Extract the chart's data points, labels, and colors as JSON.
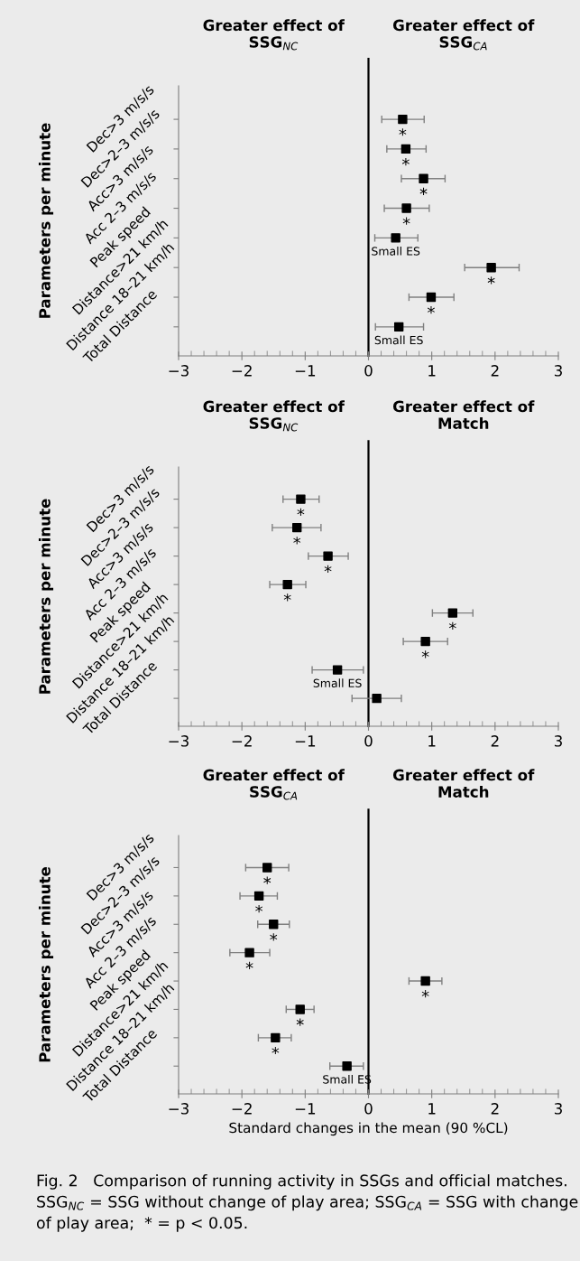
{
  "chart_data": [
    {
      "type": "scatter",
      "orientation": "horizontal",
      "ylabel": "Parameters per minute",
      "annotations": [
        "Greater effect of\nSSG$_{NC}$",
        "Greater effect of\nSSG$_{CA}$"
      ],
      "categories": [
        "Dec>3 m/s/s",
        "Dec>2–3 m/s/s",
        "Acc>3 m/s/s",
        "Acc 2–3 m/s/s",
        "Peak speed",
        "Distance>21 km/h",
        "Distance 18–21 km/h",
        "Total Distance"
      ],
      "values": [
        0.54,
        0.59,
        0.87,
        0.6,
        0.43,
        1.94,
        0.99,
        0.48
      ],
      "errors": [
        [
          0.21,
          0.88
        ],
        [
          0.29,
          0.91
        ],
        [
          0.52,
          1.21
        ],
        [
          0.25,
          0.96
        ],
        [
          0.1,
          0.78
        ],
        [
          1.52,
          2.38
        ],
        [
          0.64,
          1.35
        ],
        [
          0.11,
          0.87
        ]
      ],
      "value_labels": [
        "*",
        "*",
        "*",
        "*",
        "Small ES",
        "*",
        "*",
        "Small ES"
      ],
      "color": "#000000",
      "marker": "square",
      "grid": false,
      "ref_lines": [
        {
          "axis": "x",
          "value": 0,
          "color": "#000000"
        }
      ],
      "xlim": [
        -3,
        3
      ],
      "xticks": [
        {
          "value": -3,
          "label": "−3"
        },
        {
          "value": -2.8,
          "label": null
        },
        {
          "value": -2.6,
          "label": null
        },
        {
          "value": -2.4,
          "label": null
        },
        {
          "value": -2.2,
          "label": null
        },
        {
          "value": -2,
          "label": "−2"
        },
        {
          "value": -1.8,
          "label": null
        },
        {
          "value": -1.6,
          "label": null
        },
        {
          "value": -1.4,
          "label": null
        },
        {
          "value": -1.2,
          "label": null
        },
        {
          "value": -1,
          "label": "−1"
        },
        {
          "value": -0.8,
          "label": null
        },
        {
          "value": -0.6,
          "label": null
        },
        {
          "value": -0.4,
          "label": null
        },
        {
          "value": -0.2,
          "label": null
        },
        0,
        {
          "value": 0.2,
          "label": null
        },
        {
          "value": 0.4,
          "label": null
        },
        {
          "value": 0.6,
          "label": null
        },
        {
          "value": 0.8,
          "label": null
        },
        1,
        {
          "value": 1.2,
          "label": null
        },
        {
          "value": 1.4,
          "label": null
        },
        {
          "value": 1.6,
          "label": null
        },
        {
          "value": 1.8,
          "label": null
        },
        2,
        {
          "value": 2.2,
          "label": null
        },
        {
          "value": 2.4,
          "label": null
        },
        {
          "value": 2.6,
          "label": null
        },
        {
          "value": 2.8,
          "label": null
        },
        3
      ]
    },
    {
      "type": "scatter",
      "orientation": "horizontal",
      "ylabel": "Parameters per minute",
      "annotations": [
        "Greater effect of\nSSG$_{NC}$",
        "Greater effect of\nMatch"
      ],
      "categories": [
        "Dec>3 m/s/s",
        "Dec>2–3 m/s/s",
        "Acc>3 m/s/s",
        "Acc 2–3 m/s/s",
        "Peak speed",
        "Distance>21 km/h",
        "Distance 18–21 km/h",
        "Total Distance"
      ],
      "values": [
        -1.07,
        -1.13,
        -0.64,
        -1.28,
        1.33,
        0.9,
        -0.49,
        0.13
      ],
      "errors": [
        [
          -1.35,
          -0.78
        ],
        [
          -1.52,
          -0.75
        ],
        [
          -0.95,
          -0.32
        ],
        [
          -1.56,
          -0.99
        ],
        [
          1.01,
          1.65
        ],
        [
          0.55,
          1.25
        ],
        [
          -0.89,
          -0.08
        ],
        [
          -0.26,
          0.52
        ]
      ],
      "value_labels": [
        "*",
        "*",
        "*",
        "*",
        "*",
        "*",
        "Small ES",
        null
      ],
      "color": "#000000",
      "marker": "square",
      "grid": false,
      "ref_lines": [
        {
          "axis": "x",
          "value": 0,
          "color": "#000000"
        }
      ],
      "xlim": [
        -3,
        3
      ],
      "xticks": [
        {
          "value": -3,
          "label": "−3"
        },
        {
          "value": -2.8,
          "label": null
        },
        {
          "value": -2.6,
          "label": null
        },
        {
          "value": -2.4,
          "label": null
        },
        {
          "value": -2.2,
          "label": null
        },
        {
          "value": -2,
          "label": "−2"
        },
        {
          "value": -1.8,
          "label": null
        },
        {
          "value": -1.6,
          "label": null
        },
        {
          "value": -1.4,
          "label": null
        },
        {
          "value": -1.2,
          "label": null
        },
        {
          "value": -1,
          "label": "−1"
        },
        {
          "value": -0.8,
          "label": null
        },
        {
          "value": -0.6,
          "label": null
        },
        {
          "value": -0.4,
          "label": null
        },
        {
          "value": -0.2,
          "label": null
        },
        0,
        {
          "value": 0.2,
          "label": null
        },
        {
          "value": 0.4,
          "label": null
        },
        {
          "value": 0.6,
          "label": null
        },
        {
          "value": 0.8,
          "label": null
        },
        1,
        {
          "value": 1.2,
          "label": null
        },
        {
          "value": 1.4,
          "label": null
        },
        {
          "value": 1.6,
          "label": null
        },
        {
          "value": 1.8,
          "label": null
        },
        2,
        {
          "value": 2.2,
          "label": null
        },
        {
          "value": 2.4,
          "label": null
        },
        {
          "value": 2.6,
          "label": null
        },
        {
          "value": 2.8,
          "label": null
        },
        3
      ]
    },
    {
      "type": "scatter",
      "orientation": "horizontal",
      "ylabel": "Parameters per minute",
      "xlabel": "Standard changes in the mean (90 %CL)",
      "annotations": [
        "Greater effect of\nSSG$_{CA}$",
        "Greater effect of\nMatch",
        "Fig. 2   Comparison of running activity in SSGs and official matches. SSG$_{NC}$ = SSG without change of play area; SSG$_{CA}$ = SSG with change of play area;  * = p < 0.05."
      ],
      "categories": [
        "Dec>3 m/s/s",
        "Dec>2–3 m/s/s",
        "Acc>3 m/s/s",
        "Acc 2–3 m/s/s",
        "Peak speed",
        "Distance>21 km/h",
        "Distance 18–21 km/h",
        "Total Distance"
      ],
      "values": [
        -1.6,
        -1.73,
        -1.5,
        -1.88,
        0.9,
        -1.08,
        -1.47,
        -0.34
      ],
      "errors": [
        [
          -1.94,
          -1.26
        ],
        [
          -2.03,
          -1.44
        ],
        [
          -1.75,
          -1.25
        ],
        [
          -2.19,
          -1.56
        ],
        [
          0.64,
          1.16
        ],
        [
          -1.3,
          -0.86
        ],
        [
          -1.74,
          -1.22
        ],
        [
          -0.61,
          -0.08
        ]
      ],
      "value_labels": [
        "*",
        "*",
        "*",
        "*",
        "*",
        "*",
        "*",
        "Small ES"
      ],
      "color": "#000000",
      "marker": "square",
      "grid": false,
      "ref_lines": [
        {
          "axis": "x",
          "value": 0,
          "color": "#000000"
        }
      ],
      "xlim": [
        -3,
        3
      ],
      "xticks": [
        {
          "value": -3,
          "label": "−3"
        },
        {
          "value": -2.8,
          "label": null
        },
        {
          "value": -2.6,
          "label": null
        },
        {
          "value": -2.4,
          "label": null
        },
        {
          "value": -2.2,
          "label": null
        },
        {
          "value": -2,
          "label": "−2"
        },
        {
          "value": -1.8,
          "label": null
        },
        {
          "value": -1.6,
          "label": null
        },
        {
          "value": -1.4,
          "label": null
        },
        {
          "value": -1.2,
          "label": null
        },
        {
          "value": -1,
          "label": "−1"
        },
        {
          "value": -0.8,
          "label": null
        },
        {
          "value": -0.6,
          "label": null
        },
        {
          "value": -0.4,
          "label": null
        },
        {
          "value": -0.2,
          "label": null
        },
        0,
        {
          "value": 0.2,
          "label": null
        },
        {
          "value": 0.4,
          "label": null
        },
        {
          "value": 0.6,
          "label": null
        },
        {
          "value": 0.8,
          "label": null
        },
        1,
        {
          "value": 1.2,
          "label": null
        },
        {
          "value": 1.4,
          "label": null
        },
        {
          "value": 1.6,
          "label": null
        },
        {
          "value": 1.8,
          "label": null
        },
        2,
        {
          "value": 2.2,
          "label": null
        },
        {
          "value": 2.4,
          "label": null
        },
        {
          "value": 2.6,
          "label": null
        },
        {
          "value": 2.8,
          "label": null
        },
        3
      ]
    }
  ]
}
